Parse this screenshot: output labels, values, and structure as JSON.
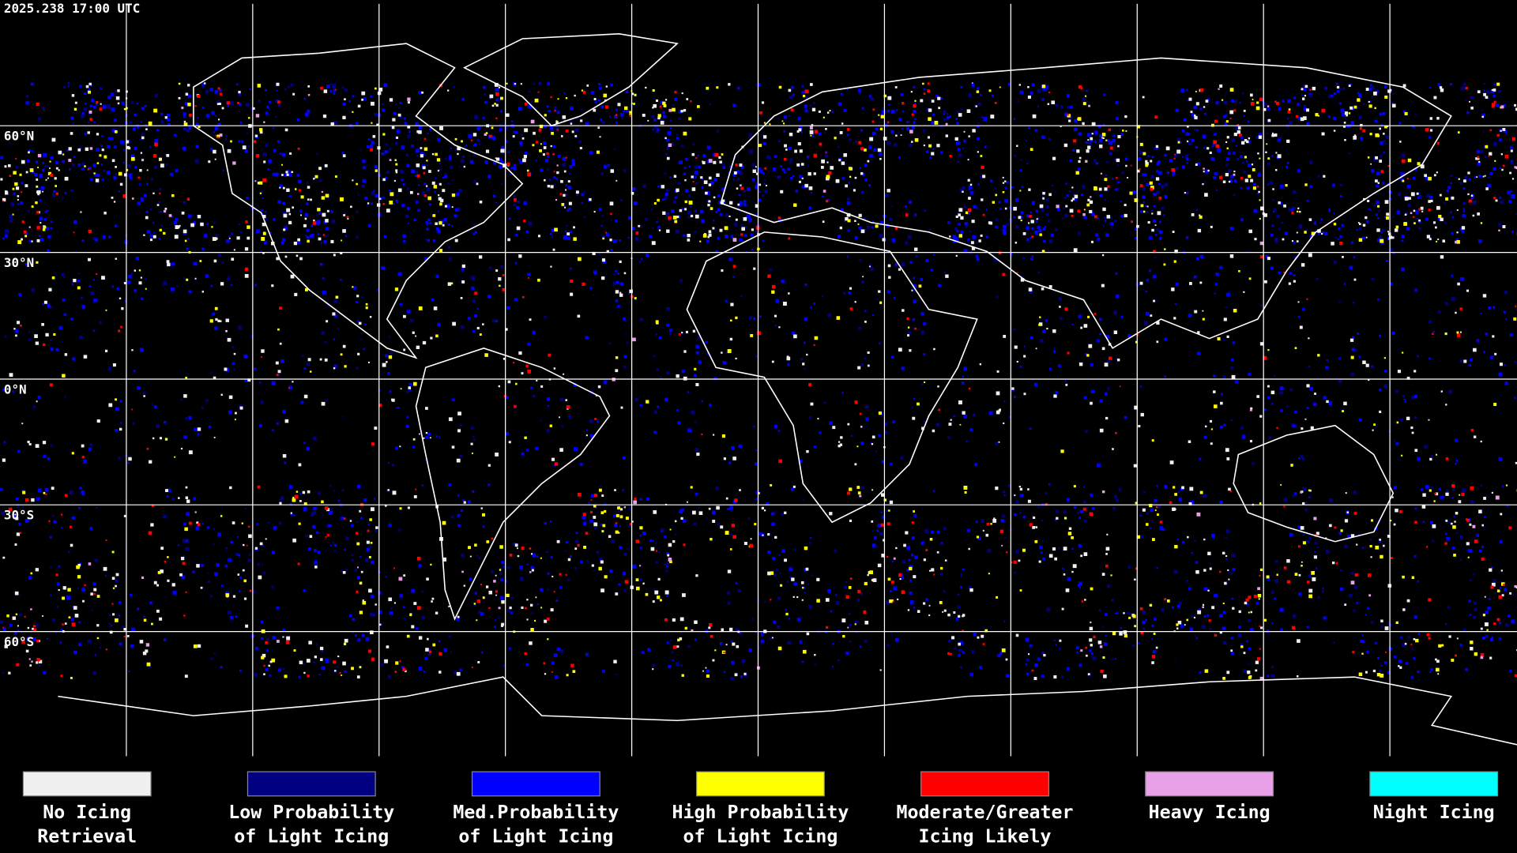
{
  "timestamp": "2025.238 17:00 UTC",
  "latitude_labels": [
    "60°N",
    "30°N",
    "0°N",
    "30°S",
    "60°S"
  ],
  "legend": {
    "items": [
      {
        "color": "#f0f0f0",
        "lines": [
          "No Icing",
          "Retrieval"
        ]
      },
      {
        "color": "#000080",
        "lines": [
          "Low Probability",
          "of Light Icing"
        ]
      },
      {
        "color": "#0000ff",
        "lines": [
          "Med.Probability",
          "of Light Icing"
        ]
      },
      {
        "color": "#ffff00",
        "lines": [
          "High Probability",
          "of Light Icing"
        ]
      },
      {
        "color": "#ff0000",
        "lines": [
          "Moderate/Greater",
          "Icing Likely"
        ]
      },
      {
        "color": "#e8a0e8",
        "lines": [
          "Heavy Icing"
        ]
      },
      {
        "color": "#00ffff",
        "lines": [
          "Night Icing"
        ]
      }
    ]
  }
}
